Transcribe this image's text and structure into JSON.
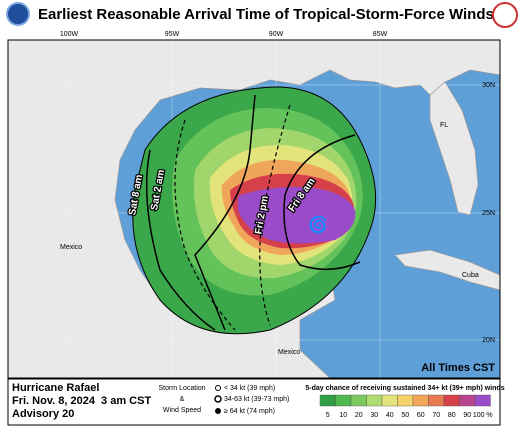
{
  "header": {
    "title": "Earliest Reasonable Arrival Time of Tropical-Storm-Force Winds"
  },
  "map": {
    "lon_labels": [
      "100W",
      "95W",
      "90W",
      "85W"
    ],
    "lat_labels": [
      "30N",
      "25N",
      "20N"
    ],
    "places": [
      "FL",
      "Mexico",
      "Cuba",
      "Mexico"
    ],
    "time_labels": [
      "Sat 8 am",
      "Sat 2 am",
      "Fri 2 pm",
      "Fri 8 am"
    ],
    "note": "All Times CST"
  },
  "footer": {
    "storm": {
      "name": "Hurricane Rafael",
      "time": "Fri. Nov. 8, 2024  3 am CST",
      "advisory": "Advisory 20"
    },
    "key": {
      "title_1": "Storm Location",
      "amp": "&",
      "title_2": "Wind Speed",
      "items": [
        "< 34 kt (39 mph)",
        "34-63 kt (39-73 mph)",
        "≥ 64 kt (74 mph)"
      ]
    },
    "scale": {
      "title": "5-day chance of receiving sustained 34+ kt (39+ mph) winds",
      "labels": [
        "5",
        "10",
        "20",
        "30",
        "40",
        "50",
        "60",
        "70",
        "80",
        "90",
        "100 %"
      ]
    }
  }
}
